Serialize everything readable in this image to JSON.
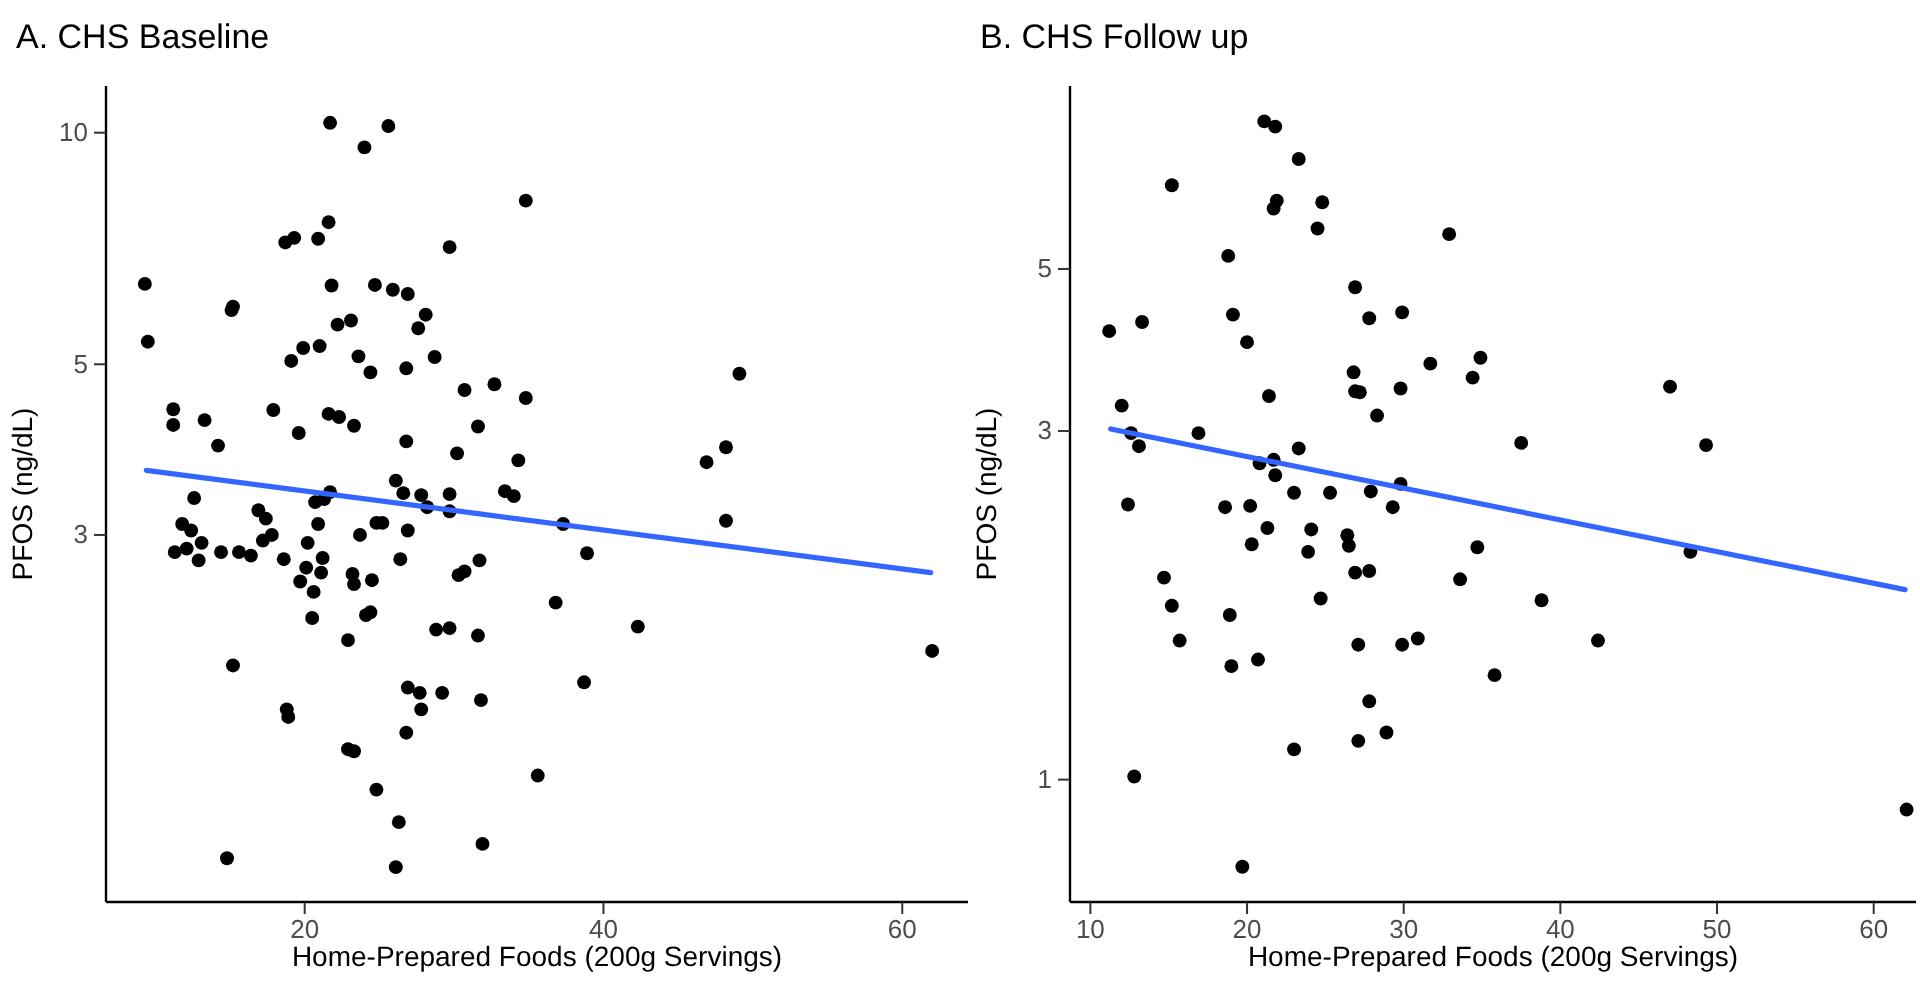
{
  "chart_data": [
    {
      "type": "scatter",
      "title": "A. CHS Baseline",
      "xlabel": "Home-Prepared Foods (200g Servings)",
      "ylabel": "PFOS (ng/dL)",
      "log": "y",
      "grid": false,
      "xlim": [
        6.7,
        64.4
      ],
      "xticks": [
        20,
        40,
        60
      ],
      "ylim": [
        1,
        11.5
      ],
      "yticks": [
        3,
        5,
        10
      ],
      "series": [
        {
          "marker": "circle",
          "color": "#000000",
          "x": [
            9.3,
            9.5,
            11.2,
            11.2,
            13.3,
            14.2,
            12.6,
            11.8,
            12.4,
            11.3,
            12.1,
            13.1,
            12.9,
            14.4,
            15.6,
            16.4,
            15.2,
            14.8,
            15.1,
            15.2,
            16.9,
            17.4,
            17.2,
            17.8,
            17.9,
            18.6,
            18.8,
            18.9,
            18.7,
            19.3,
            19.6,
            19.1,
            19.9,
            20.2,
            19.7,
            20.1,
            20.6,
            20.5,
            20.9,
            20.7,
            21.0,
            21.1,
            21.2,
            20.9,
            21.6,
            21.7,
            21.8,
            21.6,
            21.7,
            21.3,
            22.2,
            22.3,
            22.9,
            22.9,
            23.3,
            23.1,
            23.3,
            23.6,
            23.2,
            23.3,
            23.7,
            24.4,
            24.5,
            24.1,
            24.4,
            24.0,
            24.7,
            24.8,
            25.2,
            24.8,
            25.6,
            25.9,
            26.3,
            26.1,
            26.1,
            26.4,
            26.8,
            26.8,
            26.9,
            26.6,
            26.9,
            26.9,
            26.8,
            27.6,
            27.8,
            27.7,
            27.8,
            28.1,
            28.2,
            28.7,
            28.8,
            29.2,
            29.7,
            29.7,
            29.7,
            29.7,
            30.2,
            30.3,
            30.7,
            30.7,
            31.6,
            31.7,
            31.6,
            31.8,
            31.9,
            32.7,
            34.8,
            34.8,
            34.3,
            33.4,
            34.0,
            37.3,
            38.9,
            36.8,
            42.3,
            38.7,
            35.6,
            46.9,
            48.2,
            49.1,
            48.2,
            62.0
          ],
          "values": [
            6.36,
            5.35,
            4.37,
            4.17,
            4.23,
            3.92,
            3.35,
            3.1,
            3.04,
            2.85,
            2.88,
            2.93,
            2.78,
            2.85,
            2.85,
            2.82,
            2.03,
            1.14,
            5.88,
            5.94,
            3.23,
            3.15,
            2.95,
            3.0,
            4.36,
            2.79,
            1.78,
            1.74,
            7.2,
            7.3,
            4.07,
            5.05,
            5.25,
            2.93,
            2.61,
            2.72,
            2.53,
            2.34,
            3.1,
            3.31,
            5.28,
            2.68,
            2.8,
            7.28,
            7.65,
            10.3,
            6.33,
            4.31,
            3.41,
            3.34,
            5.63,
            4.27,
            2.19,
            1.58,
            1.57,
            5.7,
            4.16,
            5.12,
            2.67,
            2.59,
            3.0,
            4.88,
            2.62,
            2.36,
            2.38,
            9.57,
            6.34,
            3.11,
            3.11,
            1.4,
            10.2,
            6.25,
            1.27,
            1.11,
            3.53,
            2.79,
            4.94,
            3.97,
            6.17,
            3.4,
            3.04,
            1.9,
            1.66,
            5.57,
            3.38,
            1.87,
            1.78,
            5.8,
            3.26,
            5.11,
            2.26,
            1.87,
            2.27,
            7.1,
            3.39,
            3.22,
            3.83,
            2.66,
            2.69,
            4.63,
            4.15,
            2.78,
            2.22,
            1.83,
            1.19,
            4.71,
            8.16,
            4.52,
            3.75,
            3.42,
            3.37,
            3.1,
            2.84,
            2.45,
            2.28,
            1.93,
            1.46,
            3.73,
            3.9,
            4.86,
            3.13,
            2.12
          ]
        },
        {
          "type": "line",
          "color": "#3366ff",
          "x": [
            9.4,
            61.9
          ],
          "values": [
            3.64,
            2.68
          ]
        }
      ]
    },
    {
      "type": "scatter",
      "title": "B. CHS Follow up",
      "xlabel": "Home-Prepared Foods (200g Servings)",
      "ylabel": "PFOS (ng/dL)",
      "log": "y",
      "grid": false,
      "xlim": [
        8.7,
        62.7
      ],
      "xticks": [
        10,
        20,
        30,
        40,
        50,
        60
      ],
      "ylim": [
        0.68,
        8.9
      ],
      "yticks": [
        1,
        3,
        5
      ],
      "series": [
        {
          "marker": "circle",
          "color": "#000000",
          "x": [
            11.2,
            12.0,
            12.6,
            13.1,
            12.4,
            13.3,
            12.8,
            15.2,
            14.7,
            15.2,
            15.7,
            16.9,
            18.8,
            19.1,
            20.0,
            18.6,
            18.9,
            19.0,
            20.2,
            20.3,
            20.7,
            19.7,
            21.1,
            21.8,
            21.4,
            20.8,
            21.3,
            21.7,
            21.8,
            21.7,
            21.9,
            23.3,
            23.3,
            23.0,
            24.1,
            23.9,
            23.0,
            24.5,
            24.8,
            24.7,
            25.3,
            26.4,
            26.5,
            26.9,
            26.9,
            26.8,
            26.9,
            27.2,
            27.8,
            28.3,
            27.9,
            27.8,
            27.1,
            27.8,
            27.1,
            28.9,
            29.3,
            29.8,
            29.8,
            29.9,
            29.9,
            30.9,
            31.7,
            32.9,
            33.6,
            34.4,
            34.7,
            34.9,
            37.5,
            38.8,
            35.8,
            42.4,
            47.0,
            49.3,
            48.3,
            62.1
          ],
          "values": [
            4.11,
            3.25,
            2.98,
            2.86,
            2.38,
            4.23,
            1.01,
            6.51,
            1.89,
            1.73,
            1.55,
            2.98,
            5.21,
            4.33,
            3.97,
            2.36,
            1.68,
            1.43,
            2.37,
            2.1,
            1.46,
            0.76,
            7.96,
            7.83,
            3.35,
            2.71,
            2.21,
            2.74,
            2.61,
            6.05,
            6.2,
            7.07,
            2.84,
            2.47,
            2.2,
            2.05,
            1.1,
            5.68,
            6.17,
            1.77,
            2.47,
            2.16,
            2.09,
            1.92,
            4.72,
            3.61,
            3.4,
            3.39,
            4.28,
            3.15,
            2.48,
            1.93,
            1.53,
            1.28,
            1.13,
            1.16,
            2.36,
            2.54,
            3.43,
            4.36,
            1.53,
            1.56,
            3.71,
            5.58,
            1.88,
            3.55,
            2.08,
            3.78,
            2.89,
            1.76,
            1.39,
            1.55,
            3.45,
            2.87,
            2.05,
            0.91
          ]
        },
        {
          "type": "line",
          "color": "#3366ff",
          "x": [
            11.3,
            62.0
          ],
          "values": [
            3.02,
            1.82
          ]
        }
      ]
    }
  ]
}
